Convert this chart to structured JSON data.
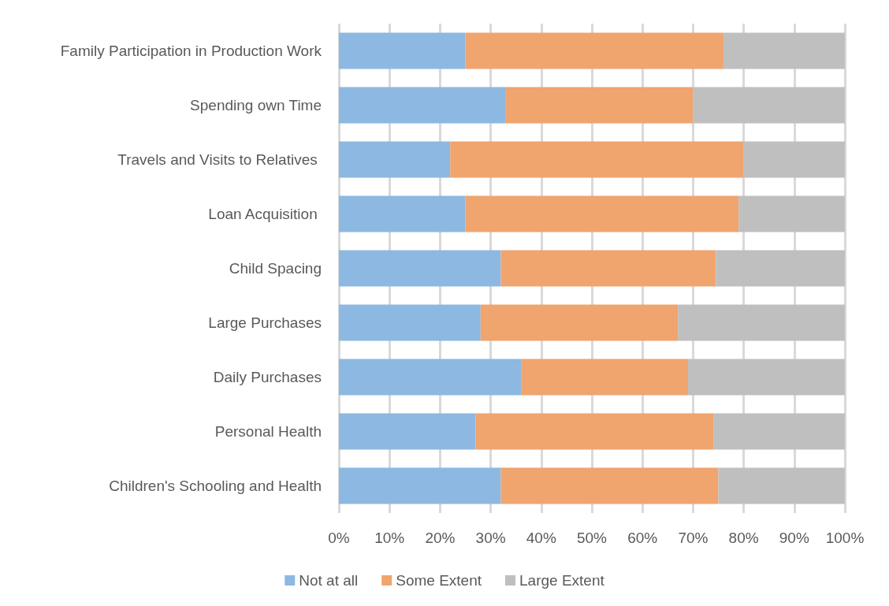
{
  "chart_data": {
    "type": "bar",
    "orientation": "horizontal",
    "stacked": true,
    "categories": [
      "Family Participation in Production Work",
      "Spending own Time",
      "Travels and Visits to Relatives ",
      "Loan Acquisition ",
      "Child Spacing",
      "Large Purchases",
      "Daily Purchases",
      "Personal Health",
      "Children's Schooling and Health"
    ],
    "series": [
      {
        "name": "Not at all",
        "color": "#8db8e1",
        "values": [
          25,
          33,
          22,
          25,
          32,
          28,
          36,
          27,
          32
        ]
      },
      {
        "name": "Some Extent",
        "color": "#f0a46e",
        "values": [
          51,
          37,
          58,
          54,
          42.5,
          39,
          33,
          47,
          43
        ]
      },
      {
        "name": "Large Extent",
        "color": "#bfbfbf",
        "values": [
          24,
          30,
          20,
          21,
          25.5,
          33,
          31,
          26,
          25
        ]
      }
    ],
    "xlim": [
      0,
      100
    ],
    "xticks": [
      {
        "value": 0,
        "label": "0%"
      },
      {
        "value": 10,
        "label": "10%"
      },
      {
        "value": 20,
        "label": "20%"
      },
      {
        "value": 30,
        "label": "30%"
      },
      {
        "value": 40,
        "label": "40%"
      },
      {
        "value": 50,
        "label": "50%"
      },
      {
        "value": 60,
        "label": "60%"
      },
      {
        "value": 70,
        "label": "70%"
      },
      {
        "value": 80,
        "label": "80%"
      },
      {
        "value": 90,
        "label": "90%"
      },
      {
        "value": 100,
        "label": "100%"
      }
    ],
    "grid": "x",
    "legend": "bottom"
  }
}
